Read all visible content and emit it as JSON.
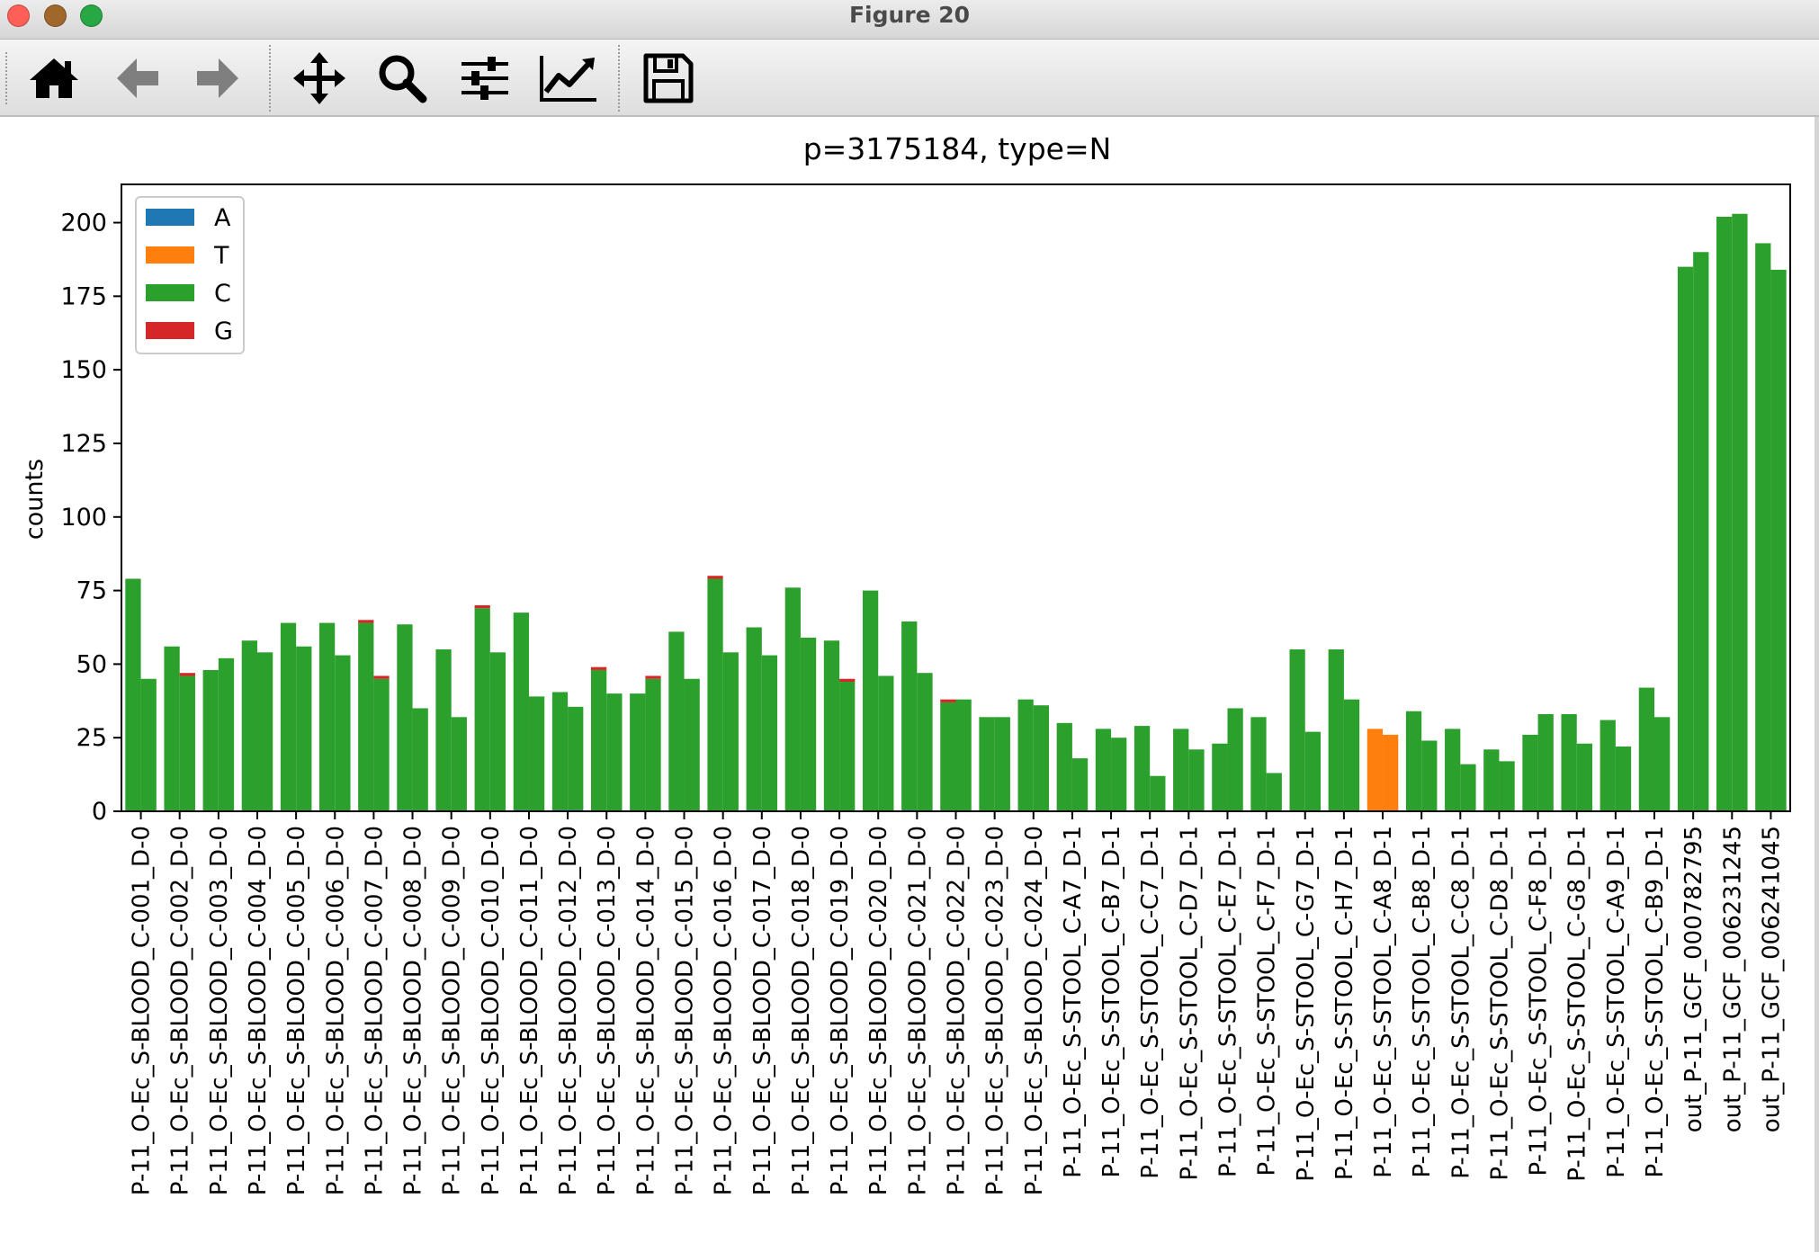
{
  "window": {
    "title": "Figure 20",
    "traffic_lights": [
      {
        "name": "close",
        "color": "#ff5f57"
      },
      {
        "name": "minimize",
        "color": "#a0672b"
      },
      {
        "name": "zoom",
        "color": "#28a745"
      }
    ]
  },
  "toolbar": {
    "buttons": [
      {
        "name": "home-icon",
        "tooltip": "Reset original view"
      },
      {
        "name": "back-arrow-icon",
        "tooltip": "Back"
      },
      {
        "name": "forward-arrow-icon",
        "tooltip": "Forward"
      },
      {
        "name": "pan-icon",
        "tooltip": "Pan"
      },
      {
        "name": "zoom-icon",
        "tooltip": "Zoom"
      },
      {
        "name": "configure-subplots-icon",
        "tooltip": "Configure subplots"
      },
      {
        "name": "edit-axis-icon",
        "tooltip": "Edit axis"
      },
      {
        "name": "save-icon",
        "tooltip": "Save"
      }
    ]
  },
  "chart_data": {
    "type": "bar",
    "title": "p=3175184, type=N",
    "xlabel": "",
    "ylabel": "counts",
    "ylim": [
      0,
      213
    ],
    "yticks": [
      0,
      25,
      50,
      75,
      100,
      125,
      150,
      175,
      200
    ],
    "grid": false,
    "legend_position": "upper-left",
    "stacked": true,
    "colors": {
      "A": "#1f77b4",
      "T": "#ff7f0e",
      "C": "#2ca02c",
      "G": "#d62728"
    },
    "categories": [
      "P-11_O-Ec_S-BLOOD_C-001_D-0",
      "P-11_O-Ec_S-BLOOD_C-002_D-0",
      "P-11_O-Ec_S-BLOOD_C-003_D-0",
      "P-11_O-Ec_S-BLOOD_C-004_D-0",
      "P-11_O-Ec_S-BLOOD_C-005_D-0",
      "P-11_O-Ec_S-BLOOD_C-006_D-0",
      "P-11_O-Ec_S-BLOOD_C-007_D-0",
      "P-11_O-Ec_S-BLOOD_C-008_D-0",
      "P-11_O-Ec_S-BLOOD_C-009_D-0",
      "P-11_O-Ec_S-BLOOD_C-010_D-0",
      "P-11_O-Ec_S-BLOOD_C-011_D-0",
      "P-11_O-Ec_S-BLOOD_C-012_D-0",
      "P-11_O-Ec_S-BLOOD_C-013_D-0",
      "P-11_O-Ec_S-BLOOD_C-014_D-0",
      "P-11_O-Ec_S-BLOOD_C-015_D-0",
      "P-11_O-Ec_S-BLOOD_C-016_D-0",
      "P-11_O-Ec_S-BLOOD_C-017_D-0",
      "P-11_O-Ec_S-BLOOD_C-018_D-0",
      "P-11_O-Ec_S-BLOOD_C-019_D-0",
      "P-11_O-Ec_S-BLOOD_C-020_D-0",
      "P-11_O-Ec_S-BLOOD_C-021_D-0",
      "P-11_O-Ec_S-BLOOD_C-022_D-0",
      "P-11_O-Ec_S-BLOOD_C-023_D-0",
      "P-11_O-Ec_S-BLOOD_C-024_D-0",
      "P-11_O-Ec_S-STOOL_C-A7_D-1",
      "P-11_O-Ec_S-STOOL_C-B7_D-1",
      "P-11_O-Ec_S-STOOL_C-C7_D-1",
      "P-11_O-Ec_S-STOOL_C-D7_D-1",
      "P-11_O-Ec_S-STOOL_C-E7_D-1",
      "P-11_O-Ec_S-STOOL_C-F7_D-1",
      "P-11_O-Ec_S-STOOL_C-G7_D-1",
      "P-11_O-Ec_S-STOOL_C-H7_D-1",
      "P-11_O-Ec_S-STOOL_C-A8_D-1",
      "P-11_O-Ec_S-STOOL_C-B8_D-1",
      "P-11_O-Ec_S-STOOL_C-C8_D-1",
      "P-11_O-Ec_S-STOOL_C-D8_D-1",
      "P-11_O-Ec_S-STOOL_C-F8_D-1",
      "P-11_O-Ec_S-STOOL_C-G8_D-1",
      "P-11_O-Ec_S-STOOL_C-A9_D-1",
      "P-11_O-Ec_S-STOOL_C-B9_D-1",
      "out_P-11_GCF_000782795",
      "out_P-11_GCF_006231245",
      "out_P-11_GCF_006241045"
    ],
    "series": [
      {
        "name": "A",
        "values": [
          [
            0,
            0
          ],
          [
            0,
            0
          ],
          [
            0,
            0
          ],
          [
            0,
            0
          ],
          [
            0,
            0
          ],
          [
            0,
            0
          ],
          [
            0,
            0
          ],
          [
            0.5,
            0
          ],
          [
            0,
            0
          ],
          [
            0,
            0
          ],
          [
            0.5,
            0
          ],
          [
            0.5,
            0.5
          ],
          [
            0,
            0
          ],
          [
            0,
            0
          ],
          [
            0,
            0
          ],
          [
            0,
            0
          ],
          [
            0.5,
            0
          ],
          [
            0,
            0
          ],
          [
            0,
            0
          ],
          [
            0,
            0
          ],
          [
            0.5,
            0
          ],
          [
            0,
            0
          ],
          [
            0,
            0
          ],
          [
            0,
            0
          ],
          [
            0,
            0
          ],
          [
            0,
            0
          ],
          [
            0,
            0
          ],
          [
            0,
            0
          ],
          [
            0,
            0
          ],
          [
            0,
            0
          ],
          [
            0,
            0
          ],
          [
            0,
            0
          ],
          [
            0,
            0
          ],
          [
            0,
            0
          ],
          [
            0,
            0
          ],
          [
            0,
            0
          ],
          [
            0,
            0
          ],
          [
            0,
            0
          ],
          [
            0,
            0
          ],
          [
            0,
            0
          ],
          [
            0,
            0
          ],
          [
            0,
            0
          ],
          [
            0,
            0
          ]
        ]
      },
      {
        "name": "T",
        "values": [
          [
            0,
            0
          ],
          [
            0,
            0
          ],
          [
            0,
            0
          ],
          [
            0,
            0
          ],
          [
            0,
            0
          ],
          [
            0,
            0
          ],
          [
            0,
            0
          ],
          [
            0,
            0
          ],
          [
            0,
            0
          ],
          [
            0,
            0
          ],
          [
            0,
            0
          ],
          [
            0,
            0
          ],
          [
            0,
            0
          ],
          [
            0,
            0
          ],
          [
            0,
            0
          ],
          [
            0,
            0
          ],
          [
            0,
            0
          ],
          [
            0,
            0
          ],
          [
            0,
            0
          ],
          [
            0,
            0
          ],
          [
            0,
            0
          ],
          [
            0,
            0
          ],
          [
            0,
            0
          ],
          [
            0,
            0
          ],
          [
            0,
            0
          ],
          [
            0,
            0
          ],
          [
            0,
            0
          ],
          [
            0,
            0
          ],
          [
            0,
            0
          ],
          [
            0,
            0
          ],
          [
            0,
            0
          ],
          [
            0,
            0
          ],
          [
            28,
            26
          ],
          [
            0,
            0
          ],
          [
            0,
            0
          ],
          [
            0,
            0
          ],
          [
            0,
            0
          ],
          [
            0,
            0
          ],
          [
            0,
            0
          ],
          [
            0,
            0
          ],
          [
            0,
            0
          ],
          [
            0,
            0
          ],
          [
            0,
            0
          ]
        ]
      },
      {
        "name": "C",
        "values": [
          [
            79,
            45
          ],
          [
            56,
            46
          ],
          [
            48,
            52
          ],
          [
            58,
            54
          ],
          [
            64,
            56
          ],
          [
            64,
            53
          ],
          [
            64,
            45
          ],
          [
            63,
            35
          ],
          [
            55,
            32
          ],
          [
            69,
            54
          ],
          [
            67,
            39
          ],
          [
            40,
            35
          ],
          [
            48,
            40
          ],
          [
            40,
            45
          ],
          [
            61,
            45
          ],
          [
            79,
            54
          ],
          [
            62,
            53
          ],
          [
            76,
            59
          ],
          [
            58,
            44
          ],
          [
            75,
            46
          ],
          [
            64,
            47
          ],
          [
            37,
            38
          ],
          [
            32,
            32
          ],
          [
            38,
            36
          ],
          [
            30,
            18
          ],
          [
            28,
            25
          ],
          [
            29,
            12
          ],
          [
            28,
            21
          ],
          [
            23,
            35
          ],
          [
            32,
            13
          ],
          [
            55,
            27
          ],
          [
            55,
            38
          ],
          [
            0,
            0
          ],
          [
            34,
            24
          ],
          [
            28,
            16
          ],
          [
            21,
            17
          ],
          [
            26,
            33
          ],
          [
            33,
            23
          ],
          [
            31,
            22
          ],
          [
            42,
            32
          ],
          [
            185,
            190
          ],
          [
            202,
            203
          ],
          [
            193,
            184
          ]
        ]
      },
      {
        "name": "G",
        "values": [
          [
            0,
            0
          ],
          [
            0,
            1
          ],
          [
            0,
            0
          ],
          [
            0,
            0
          ],
          [
            0,
            0
          ],
          [
            0,
            0
          ],
          [
            1,
            1
          ],
          [
            0,
            0
          ],
          [
            0,
            0
          ],
          [
            1,
            0
          ],
          [
            0,
            0
          ],
          [
            0,
            0
          ],
          [
            1,
            0
          ],
          [
            0,
            1
          ],
          [
            0,
            0
          ],
          [
            1,
            0
          ],
          [
            0,
            0
          ],
          [
            0,
            0
          ],
          [
            0,
            1
          ],
          [
            0,
            0
          ],
          [
            0,
            0
          ],
          [
            1,
            0
          ],
          [
            0,
            0
          ],
          [
            0,
            0
          ],
          [
            0,
            0
          ],
          [
            0,
            0
          ],
          [
            0,
            0
          ],
          [
            0,
            0
          ],
          [
            0,
            0
          ],
          [
            0,
            0
          ],
          [
            0,
            0
          ],
          [
            0,
            0
          ],
          [
            0,
            0
          ],
          [
            0,
            0
          ],
          [
            0,
            0
          ],
          [
            0,
            0
          ],
          [
            0,
            0
          ],
          [
            0,
            0
          ],
          [
            0,
            0
          ],
          [
            0,
            0
          ],
          [
            0,
            0
          ],
          [
            0,
            0
          ],
          [
            0,
            0
          ]
        ]
      }
    ]
  }
}
